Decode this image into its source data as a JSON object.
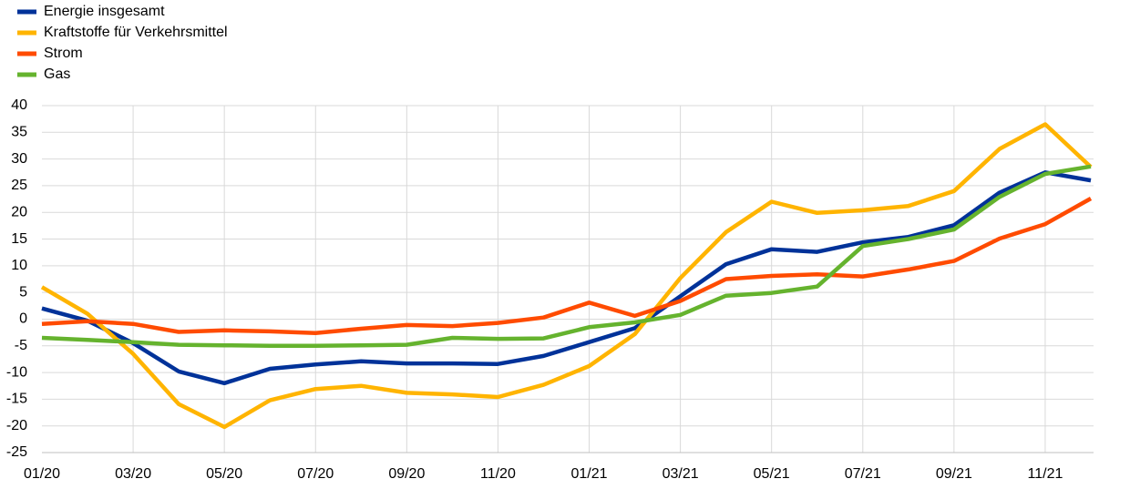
{
  "chart_data": {
    "type": "line",
    "categories": [
      "01/20",
      null,
      "03/20",
      null,
      "05/20",
      null,
      "07/20",
      null,
      "09/20",
      null,
      "11/20",
      null,
      "01/21",
      null,
      "03/21",
      null,
      "05/21",
      null,
      "07/21",
      null,
      "09/21",
      null,
      "11/21",
      null
    ],
    "series": [
      {
        "name": "Energie insgesamt",
        "color": "#003299",
        "values": [
          2.0,
          -0.3,
          -4.5,
          -9.8,
          -12.0,
          -9.3,
          -8.5,
          -7.9,
          -8.3,
          -8.3,
          -8.4,
          -6.9,
          -4.3,
          -1.7,
          4.3,
          10.3,
          13.1,
          12.6,
          14.4,
          15.4,
          17.6,
          23.7,
          27.5,
          26.0
        ]
      },
      {
        "name": "Kraftstoffe für Verkehrsmittel",
        "color": "#FFB400",
        "values": [
          6.0,
          1.0,
          -6.5,
          -15.9,
          -20.2,
          -15.2,
          -13.1,
          -12.5,
          -13.8,
          -14.1,
          -14.6,
          -12.3,
          -8.8,
          -2.8,
          7.7,
          16.3,
          22.0,
          19.9,
          20.4,
          21.2,
          24.0,
          31.9,
          36.5,
          28.5
        ]
      },
      {
        "name": "Strom",
        "color": "#FF4B00",
        "values": [
          -0.9,
          -0.4,
          -0.9,
          -2.4,
          -2.1,
          -2.3,
          -2.6,
          -1.8,
          -1.1,
          -1.3,
          -0.7,
          0.3,
          3.1,
          0.6,
          3.4,
          7.5,
          8.1,
          8.4,
          8.0,
          9.3,
          10.9,
          15.1,
          17.8,
          22.6
        ]
      },
      {
        "name": "Gas",
        "color": "#65B32E",
        "values": [
          -3.5,
          -3.9,
          -4.3,
          -4.8,
          -4.9,
          -5.0,
          -5.0,
          -4.9,
          -4.8,
          -3.5,
          -3.7,
          -3.6,
          -1.5,
          -0.6,
          0.8,
          4.4,
          4.9,
          6.1,
          13.7,
          15.0,
          16.8,
          22.9,
          27.2,
          28.6
        ]
      }
    ],
    "ylim": [
      -25,
      40
    ],
    "yticks": [
      -25,
      -20,
      -15,
      -10,
      -5,
      0,
      5,
      10,
      15,
      20,
      25,
      30,
      35,
      40
    ],
    "grid": true,
    "legend": "top-left"
  }
}
